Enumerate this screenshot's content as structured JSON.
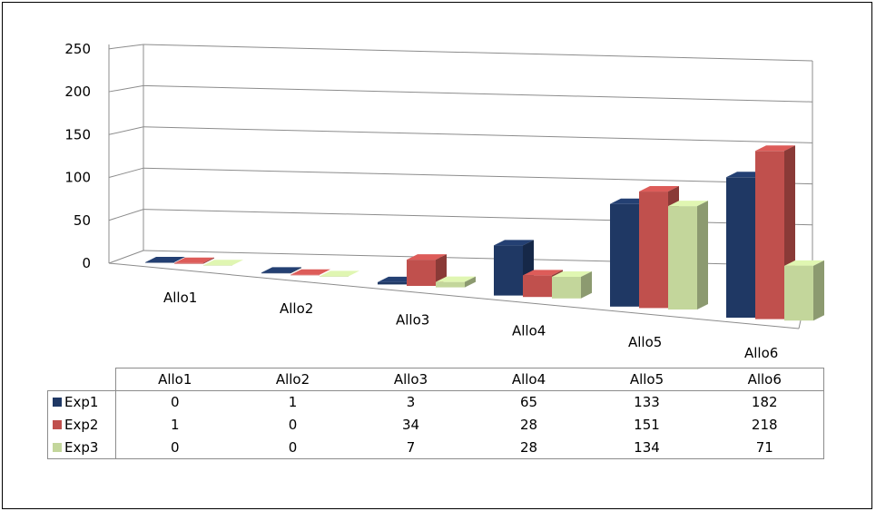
{
  "chart_data": {
    "type": "bar",
    "style": "3d-clustered-column",
    "categories": [
      "Allo1",
      "Allo2",
      "Allo3",
      "Allo4",
      "Allo5",
      "Allo6"
    ],
    "series": [
      {
        "name": "Exp1",
        "color": "#1f3864",
        "values": [
          0,
          1,
          3,
          65,
          133,
          182
        ]
      },
      {
        "name": "Exp2",
        "color": "#c0504d",
        "values": [
          1,
          0,
          34,
          28,
          151,
          218
        ]
      },
      {
        "name": "Exp3",
        "color": "#c3d69b",
        "values": [
          0,
          0,
          7,
          28,
          134,
          71
        ]
      }
    ],
    "ylim": [
      0,
      250
    ],
    "yticks": [
      "0",
      "50",
      "100",
      "150",
      "200",
      "250"
    ],
    "grid": true,
    "legend": "data-table-below",
    "data_table": true
  }
}
